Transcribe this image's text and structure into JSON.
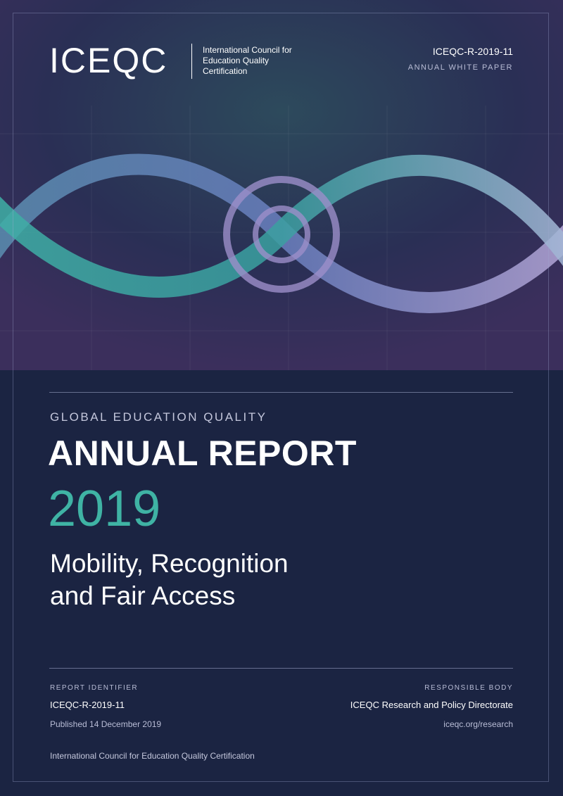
{
  "header": {
    "logo": "ICEQC",
    "tagline": [
      "International Council for",
      "Education Quality",
      "Certification"
    ],
    "code": "ICEQC-R-2019-11",
    "series": "ANNUAL WHITE PAPER"
  },
  "title": {
    "kicker": "GLOBAL EDUCATION QUALITY",
    "main": "ANNUAL REPORT",
    "year": "2019",
    "subtitle": [
      "Mobility, Recognition",
      "and Fair Access"
    ]
  },
  "meta": {
    "left": {
      "label": "REPORT IDENTIFIER",
      "value": "ICEQC-R-2019-11",
      "date": "Published 14 December 2019"
    },
    "right": {
      "label": "RESPONSIBLE BODY",
      "value": "ICEQC Research and Policy Directorate",
      "link": "iceqc.org/research"
    }
  },
  "footer": {
    "text": "International Council for Education Quality Certification"
  }
}
